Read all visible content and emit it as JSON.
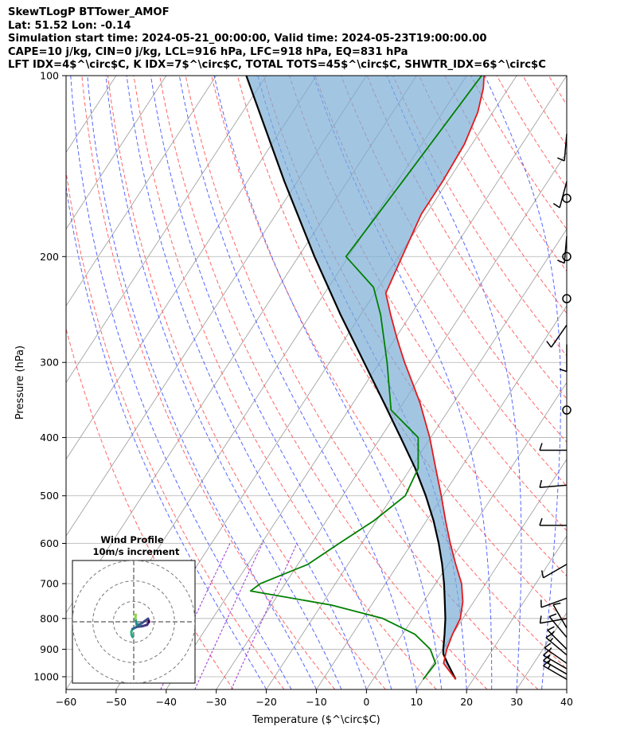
{
  "header": {
    "line1": "SkewTLogP BTTower_AMOF",
    "line2": "Lat: 51.52   Lon: -0.14",
    "line3": "Simulation start time: 2024-05-21_00:00:00, Valid time: 2024-05-23T19:00:00.00",
    "line4": "CAPE=10 j/kg, CIN=0 j/kg, LCL=916 hPa, LFC=918 hPa, EQ=831 hPa",
    "line5": "LFT IDX=4$^\\circ$C, K IDX=7$^\\circ$C, TOTAL TOTS=45$^\\circ$C, SHWTR_IDX=6$^\\circ$C"
  },
  "colors": {
    "temperature": "#e31a1c",
    "dewpoint": "#008000",
    "parcel": "#000000",
    "cape_fill": "#7baed6",
    "dry_adiabat": "#ff6666",
    "moist_adiabat": "#5566ff",
    "isotherm": "#999999",
    "mixing_ratio": "#9b30d9",
    "wind_barb": "#000000"
  },
  "chart_data": {
    "type": "skewt-logp",
    "xlabel": "Temperature ($^\\circ$C)",
    "ylabel": "Pressure (hPa)",
    "xlim": [
      -60,
      40
    ],
    "ylim": [
      1050,
      100
    ],
    "y_scale": "log",
    "grid": true,
    "x_ticks": [
      -60,
      -50,
      -40,
      -30,
      -20,
      -10,
      0,
      10,
      20,
      30,
      40
    ],
    "y_ticks": [
      1000,
      900,
      800,
      700,
      600,
      500,
      400,
      300,
      200,
      100
    ],
    "series": [
      {
        "key": "temperature",
        "p": [
          1010,
          950,
          900,
          850,
          800,
          750,
          700,
          650,
          600,
          550,
          500,
          450,
          400,
          350,
          320,
          300,
          280,
          270,
          250,
          230,
          200,
          170,
          150,
          130,
          115,
          105,
          100
        ],
        "t": [
          16.5,
          12.0,
          10.8,
          10.0,
          9.5,
          7.8,
          5.2,
          1.5,
          -2.3,
          -6.2,
          -10.3,
          -15.0,
          -20.2,
          -26.7,
          -31.5,
          -35.0,
          -38.5,
          -40.3,
          -44.0,
          -47.8,
          -49.3,
          -51.0,
          -51.0,
          -51.5,
          -53.0,
          -55.0,
          -56.5
        ]
      },
      {
        "key": "dewpoint",
        "p": [
          1010,
          950,
          900,
          850,
          800,
          760,
          720,
          700,
          650,
          600,
          550,
          500,
          450,
          400,
          360,
          300,
          250,
          225,
          200,
          150,
          100
        ],
        "t": [
          10.0,
          10.4,
          7.5,
          2.5,
          -6.0,
          -18.0,
          -36.0,
          -35.0,
          -28.0,
          -24.5,
          -20.5,
          -17.5,
          -18.5,
          -22.5,
          -31.5,
          -38.5,
          -46.0,
          -51.0,
          -60.5,
          -59.0,
          -57.0
        ]
      },
      {
        "key": "parcel",
        "p": [
          1010,
          950,
          916,
          900,
          850,
          800,
          750,
          700,
          650,
          600,
          550,
          500,
          450,
          400,
          350,
          300,
          250,
          200,
          150,
          100
        ],
        "t": [
          16.5,
          12.8,
          10.7,
          10.1,
          8.4,
          6.5,
          4.2,
          1.7,
          -1.2,
          -4.6,
          -8.6,
          -13.4,
          -19.1,
          -26.0,
          -33.9,
          -43.1,
          -54.0,
          -66.8,
          -82.6,
          -104.0
        ]
      }
    ],
    "wind_barbs": [
      {
        "p": 1010,
        "speed": 15,
        "dir": 300
      },
      {
        "p": 990,
        "speed": 15,
        "dir": 300
      },
      {
        "p": 970,
        "speed": 15,
        "dir": 300
      },
      {
        "p": 950,
        "speed": 15,
        "dir": 305
      },
      {
        "p": 920,
        "speed": 15,
        "dir": 310
      },
      {
        "p": 900,
        "speed": 15,
        "dir": 315
      },
      {
        "p": 860,
        "speed": 10,
        "dir": 320
      },
      {
        "p": 830,
        "speed": 10,
        "dir": 330
      },
      {
        "p": 800,
        "speed": 10,
        "dir": 260
      },
      {
        "p": 740,
        "speed": 10,
        "dir": 250
      },
      {
        "p": 650,
        "speed": 10,
        "dir": 240
      },
      {
        "p": 560,
        "speed": 10,
        "dir": 270
      },
      {
        "p": 480,
        "speed": 10,
        "dir": 265
      },
      {
        "p": 420,
        "speed": 10,
        "dir": 270
      },
      {
        "p": 360,
        "speed": 0,
        "dir": 0
      },
      {
        "p": 280,
        "speed": 10,
        "dir": 180
      },
      {
        "p": 260,
        "speed": 10,
        "dir": 215
      },
      {
        "p": 235,
        "speed": 0,
        "dir": 0
      },
      {
        "p": 200,
        "speed": 0,
        "dir": 0
      },
      {
        "p": 185,
        "speed": 10,
        "dir": 185
      },
      {
        "p": 160,
        "speed": 0,
        "dir": 0
      },
      {
        "p": 150,
        "speed": 10,
        "dir": 195
      },
      {
        "p": 125,
        "speed": 10,
        "dir": 185
      }
    ],
    "hodograph": {
      "title": "Wind Profile",
      "subtitle": "10m/s increment",
      "rings": [
        10,
        20,
        30
      ],
      "range": 30,
      "points": [
        [
          -0.5,
          -7.5
        ],
        [
          -1.0,
          -6.5
        ],
        [
          -1.2,
          -5.0
        ],
        [
          -0.6,
          -3.5
        ],
        [
          1.5,
          -2.5
        ],
        [
          4.0,
          -2.2
        ],
        [
          6.5,
          -1.5
        ],
        [
          7.5,
          0.0
        ],
        [
          7.0,
          1.5
        ],
        [
          3.5,
          -1.0
        ],
        [
          1.5,
          -1.5
        ],
        [
          0.8,
          1.5
        ],
        [
          1.0,
          3.5
        ]
      ]
    }
  }
}
